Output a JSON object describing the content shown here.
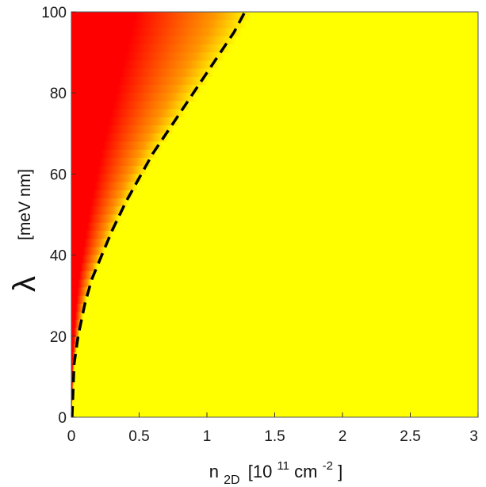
{
  "chart_data": {
    "type": "heatmap",
    "title": "",
    "xlabel": {
      "base": "n",
      "subscript": "2D",
      "units": "[10",
      "units_exp": "11",
      "units_mid": " cm",
      "units_exp2": "-2",
      "units_end": "]"
    },
    "ylabel": {
      "symbol": "λ",
      "units": "[meV nm]"
    },
    "xlim": [
      0,
      3
    ],
    "ylim": [
      0,
      100
    ],
    "x_ticks": [
      "0",
      "0.5",
      "1",
      "1.5",
      "2",
      "2.5",
      "3"
    ],
    "y_ticks": [
      "0",
      "20",
      "40",
      "60",
      "80",
      "100"
    ],
    "x_tick_values": [
      0,
      0.5,
      1,
      1.5,
      2,
      2.5,
      3
    ],
    "y_tick_values": [
      0,
      20,
      40,
      60,
      80,
      100
    ],
    "colormap": {
      "low": "#ff0000",
      "mid": "#ff9900",
      "high": "#ffff00",
      "background": "#ffff00"
    },
    "grid": false,
    "series": [
      {
        "style": "dashed",
        "color": "#000000",
        "x": [
          0.01,
          0.02,
          0.05,
          0.1,
          0.15,
          0.2,
          0.3,
          0.4,
          0.5,
          0.6,
          0.7,
          0.8,
          0.9,
          1.0,
          1.1,
          1.2,
          1.28
        ],
        "y": [
          4,
          13,
          20,
          28,
          34,
          38,
          46,
          53,
          59,
          65,
          70,
          75,
          80,
          85,
          90,
          95,
          100
        ]
      }
    ]
  }
}
